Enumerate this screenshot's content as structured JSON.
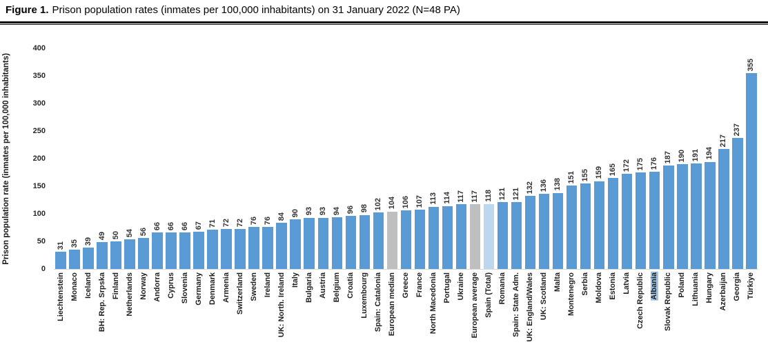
{
  "figure": {
    "title_prefix": "Figure 1.",
    "title_text": "Prison population rates (inmates per 100,000 inhabitants) on 31 January 2022 (N=48 PA)"
  },
  "chart_data": {
    "type": "bar",
    "title": "Figure 1. Prison population rates (inmates per 100,000 inhabitants) on 31 January 2022 (N=48 PA)",
    "xlabel": "",
    "ylabel": "Prison population rate (inmates per 100,000 inhabitants)",
    "ylim": [
      0,
      400
    ],
    "yticks": [
      0,
      50,
      100,
      150,
      200,
      250,
      300,
      350,
      400
    ],
    "grid": false,
    "legend": false,
    "bar_colors": {
      "default": "#5B9BD5",
      "european_stat": "#BFBFBF",
      "spain_total": "#BDD7EE"
    },
    "label_highlight_color": "#9DC3E6",
    "bars": [
      {
        "label": "Liechtenstein",
        "value": 31
      },
      {
        "label": "Monaco",
        "value": 35
      },
      {
        "label": "Iceland",
        "value": 39
      },
      {
        "label": "BH: Rep. Srpska",
        "value": 49
      },
      {
        "label": "Finland",
        "value": 50
      },
      {
        "label": "Netherlands",
        "value": 54
      },
      {
        "label": "Norway",
        "value": 56
      },
      {
        "label": "Andorra",
        "value": 66
      },
      {
        "label": "Cyprus",
        "value": 66
      },
      {
        "label": "Slovenia",
        "value": 66
      },
      {
        "label": "Germany",
        "value": 67
      },
      {
        "label": "Denmark",
        "value": 71
      },
      {
        "label": "Armenia",
        "value": 72
      },
      {
        "label": "Switzerland",
        "value": 72
      },
      {
        "label": "Sweden",
        "value": 76
      },
      {
        "label": "Ireland",
        "value": 76
      },
      {
        "label": "UK: North. Ireland",
        "value": 84
      },
      {
        "label": "Italy",
        "value": 90
      },
      {
        "label": "Bulgaria",
        "value": 93
      },
      {
        "label": "Austria",
        "value": 93
      },
      {
        "label": "Belgium",
        "value": 94
      },
      {
        "label": "Croatia",
        "value": 96
      },
      {
        "label": "Luxembourg",
        "value": 98
      },
      {
        "label": "Spain: Catalonia",
        "value": 102
      },
      {
        "label": "European median",
        "value": 104,
        "color": "european_stat"
      },
      {
        "label": "Greece",
        "value": 106
      },
      {
        "label": "France",
        "value": 107
      },
      {
        "label": "North Macedonia",
        "value": 113
      },
      {
        "label": "Portugal",
        "value": 114
      },
      {
        "label": "Ukraine",
        "value": 117
      },
      {
        "label": "European average",
        "value": 117,
        "color": "european_stat"
      },
      {
        "label": "Spain (Total)",
        "value": 118,
        "color": "spain_total"
      },
      {
        "label": "Romania",
        "value": 121
      },
      {
        "label": "Spain: State Adm.",
        "value": 121
      },
      {
        "label": "UK: England/Wales",
        "value": 132
      },
      {
        "label": "UK: Scotland",
        "value": 136
      },
      {
        "label": "Malta",
        "value": 138
      },
      {
        "label": "Montenegro",
        "value": 151
      },
      {
        "label": "Serbia",
        "value": 155
      },
      {
        "label": "Moldova",
        "value": 159
      },
      {
        "label": "Estonia",
        "value": 165
      },
      {
        "label": "Latvia",
        "value": 172
      },
      {
        "label": "Czech Republic",
        "value": 175
      },
      {
        "label": "Albania",
        "value": 176,
        "label_highlight": true
      },
      {
        "label": "Slovak Republic",
        "value": 187
      },
      {
        "label": "Poland",
        "value": 190
      },
      {
        "label": "Lithuania",
        "value": 191
      },
      {
        "label": "Hungary",
        "value": 194
      },
      {
        "label": "Azerbaijan",
        "value": 217
      },
      {
        "label": "Georgia",
        "value": 237
      },
      {
        "label": "Türkiye",
        "value": 355
      }
    ]
  }
}
